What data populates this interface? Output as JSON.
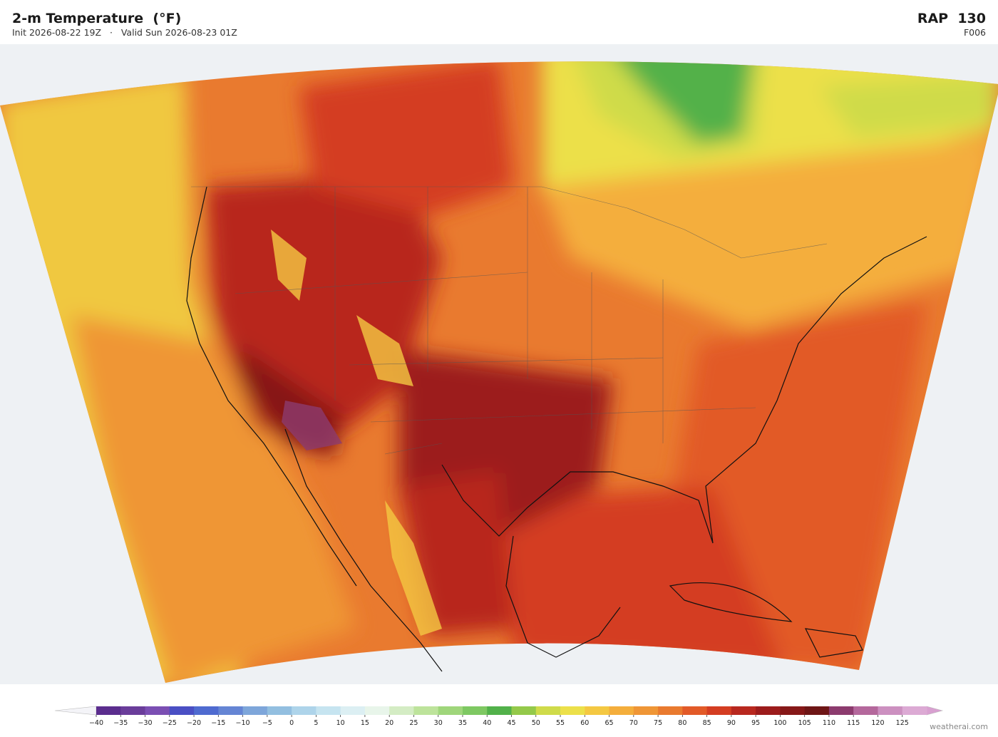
{
  "header": {
    "title": "2-m Temperature  (°F)",
    "subtitle": "Init 2026-08-22 19Z   ·   Valid Sun 2026-08-23 01Z",
    "model": "RAP  130",
    "forecast_hour": "F006"
  },
  "colorbar": {
    "lim": [
      -40,
      130
    ],
    "ticks": [
      {
        "value": -40,
        "label": "−40"
      },
      {
        "value": -35,
        "label": "−35"
      },
      {
        "value": -30,
        "label": "−30"
      },
      {
        "value": -25,
        "label": "−25"
      },
      {
        "value": -20,
        "label": "−20"
      },
      {
        "value": -15,
        "label": "−15"
      },
      {
        "value": -10,
        "label": "−10"
      },
      {
        "value": -5,
        "label": "−5"
      },
      0,
      5,
      10,
      15,
      20,
      25,
      30,
      35,
      40,
      45,
      50,
      55,
      60,
      65,
      70,
      75,
      80,
      85,
      90,
      95,
      100,
      105,
      110,
      115,
      120,
      125
    ],
    "colors": [
      "#5b2d8e",
      "#6a3d9a",
      "#7b4fb3",
      "#4a4fc4",
      "#4f6bd0",
      "#6585d4",
      "#7ea6da",
      "#93bfe0",
      "#aed4ea",
      "#c6e4f0",
      "#dceff3",
      "#e8f5ea",
      "#d4ecc4",
      "#bde39b",
      "#9fd67b",
      "#7ec862",
      "#52b14a",
      "#94c94a",
      "#cfdb4a",
      "#ece04a",
      "#f4c842",
      "#f4ae3c",
      "#ef9636",
      "#e97a2f",
      "#e25a28",
      "#d43d22",
      "#b8281f",
      "#9c1c1c",
      "#861818",
      "#6e1616",
      "#8c3b6e",
      "#b4689c",
      "#cc90c0",
      "#dcaad4"
    ]
  },
  "footer": {
    "credit": "weatherai.com"
  }
}
